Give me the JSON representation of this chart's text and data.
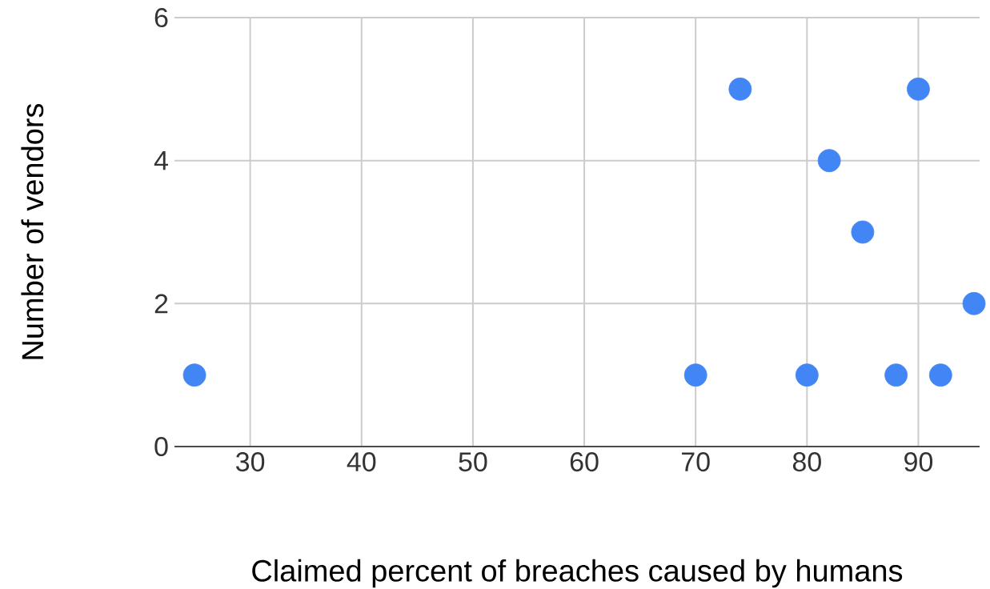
{
  "chart_data": {
    "type": "scatter",
    "xlabel": "Claimed percent of breaches caused by humans",
    "ylabel": "Number of vendors",
    "x": [
      25,
      70,
      74,
      80,
      82,
      85,
      88,
      90,
      92,
      95
    ],
    "values": [
      1,
      1,
      5,
      1,
      4,
      3,
      1,
      5,
      1,
      2
    ],
    "color": "#4285f4",
    "grid": true,
    "xlim": [
      23.2,
      95.5
    ],
    "ylim": [
      0,
      6
    ],
    "xticks": [
      30,
      40,
      50,
      60,
      70,
      80,
      90
    ],
    "yticks": [
      0,
      2,
      4,
      6
    ]
  }
}
